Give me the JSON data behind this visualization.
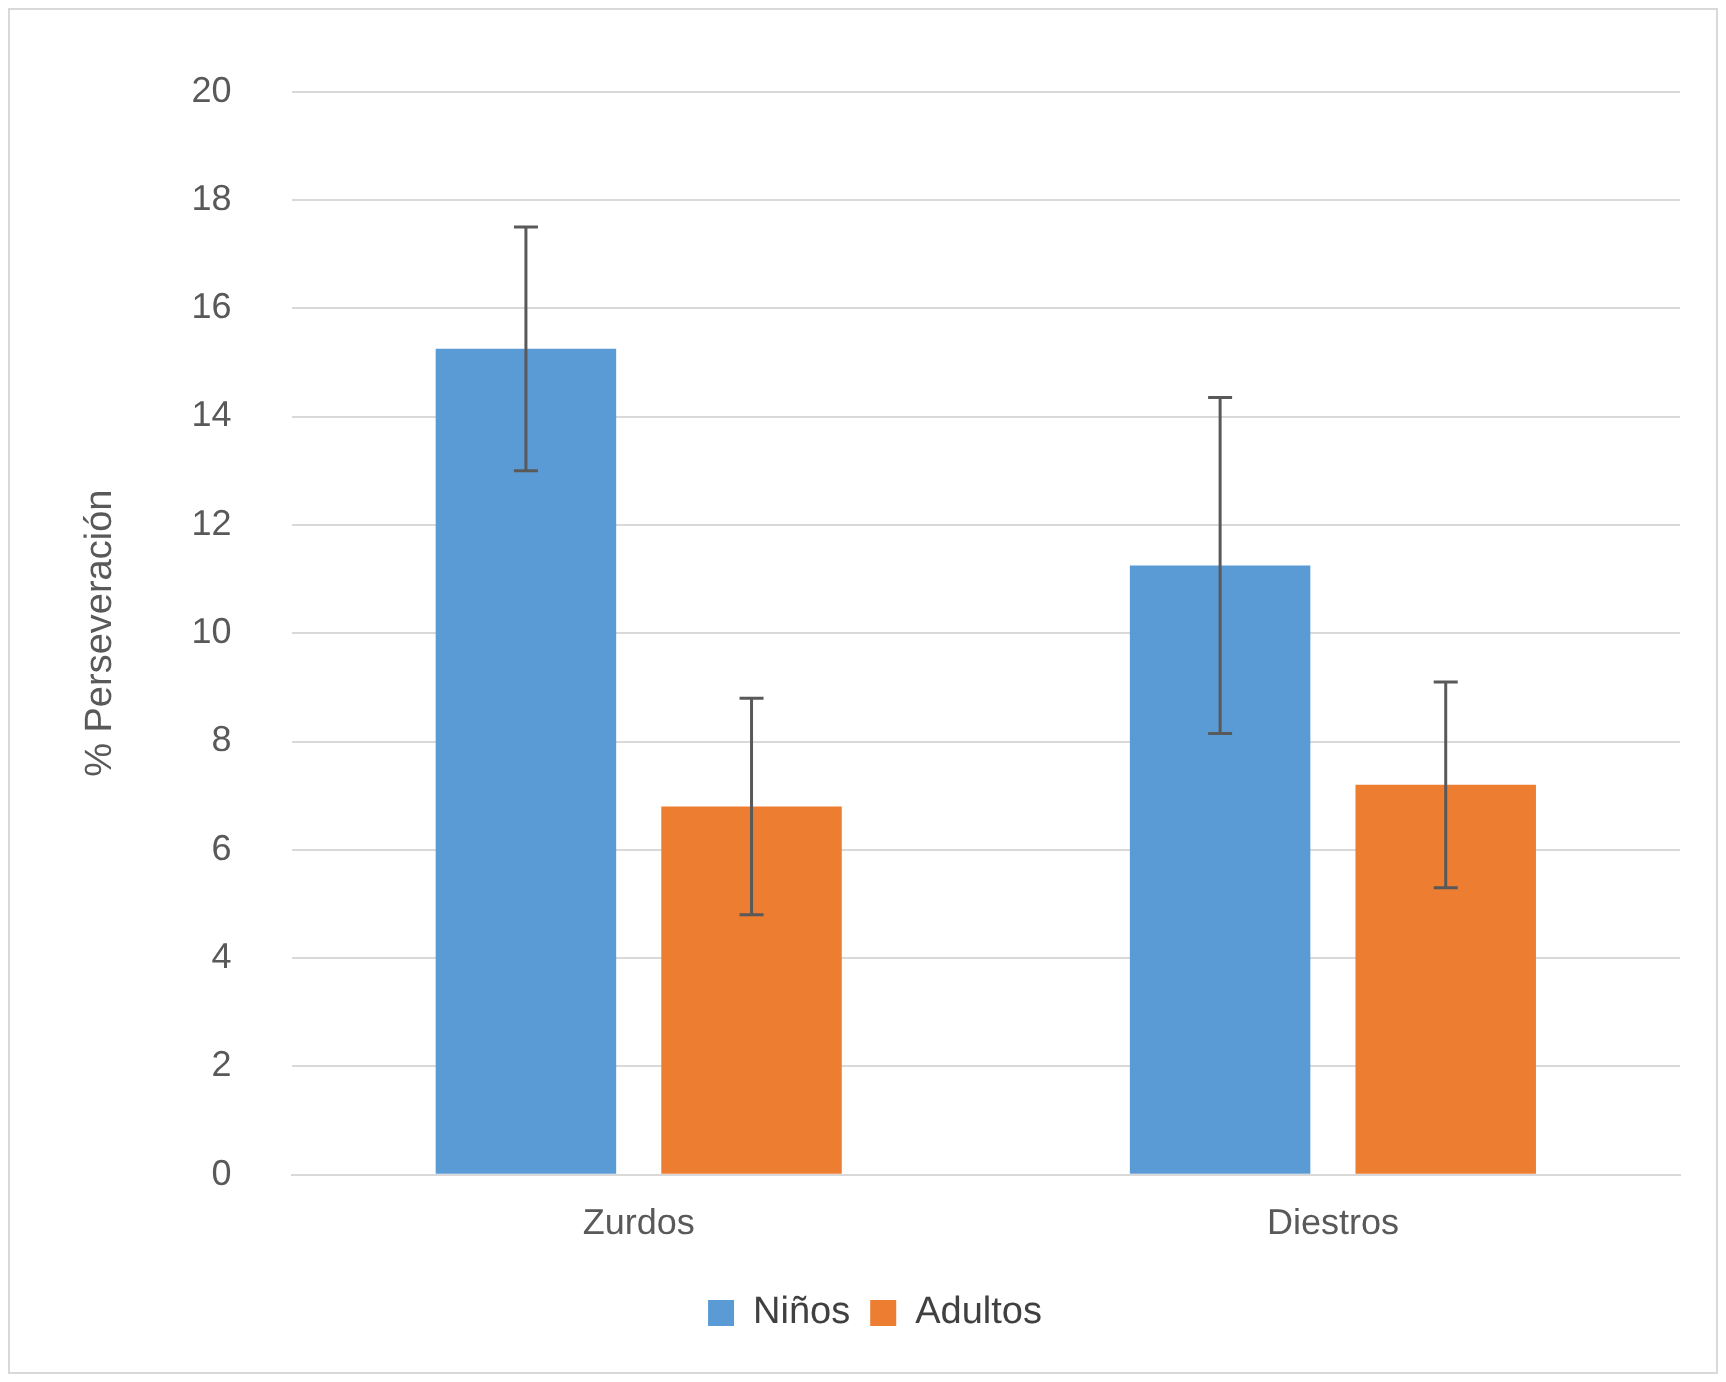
{
  "chart_data": {
    "type": "bar",
    "ylabel": "% Perseveración",
    "categories": [
      "Zurdos",
      "Diestros"
    ],
    "series": [
      {
        "name": "Niños",
        "color": "#5b9bd5",
        "values": [
          15.25,
          11.25
        ],
        "errors": [
          2.25,
          3.1
        ]
      },
      {
        "name": "Adultos",
        "color": "#ed7d31",
        "values": [
          6.8,
          7.2
        ],
        "errors": [
          2.0,
          1.9
        ]
      }
    ],
    "ylim": [
      0,
      20
    ],
    "yticks": [
      0,
      2,
      4,
      6,
      8,
      10,
      12,
      14,
      16,
      18,
      20
    ],
    "grid": "y",
    "legend": "bottom"
  }
}
